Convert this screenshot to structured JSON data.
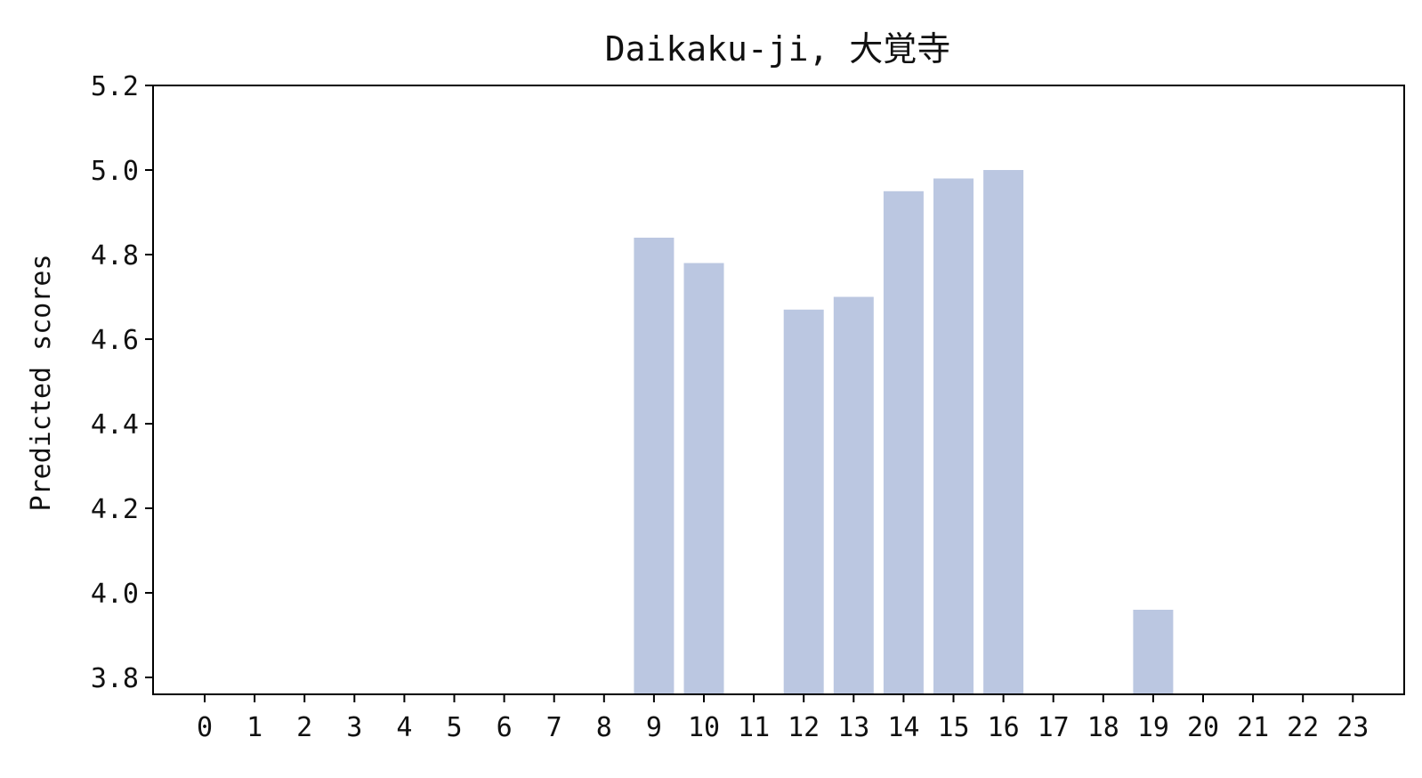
{
  "chart_data": {
    "type": "bar",
    "title": "Daikaku-ji, 大覚寺",
    "xlabel": "",
    "ylabel": "Predicted scores",
    "categories": [
      "0",
      "1",
      "2",
      "3",
      "4",
      "5",
      "6",
      "7",
      "8",
      "9",
      "10",
      "11",
      "12",
      "13",
      "14",
      "15",
      "16",
      "17",
      "18",
      "19",
      "20",
      "21",
      "22",
      "23"
    ],
    "values": [
      null,
      null,
      null,
      null,
      null,
      null,
      null,
      null,
      null,
      4.84,
      4.78,
      null,
      4.67,
      4.7,
      4.95,
      4.98,
      5.0,
      null,
      null,
      3.96,
      null,
      null,
      null,
      null
    ],
    "ylim": [
      3.76,
      5.2
    ],
    "yticks": [
      "3.8",
      "4.0",
      "4.2",
      "4.4",
      "4.6",
      "4.8",
      "5.0",
      "5.2"
    ],
    "grid": false,
    "bar_color": "#bbc7e1",
    "axis_color": "#000000"
  }
}
